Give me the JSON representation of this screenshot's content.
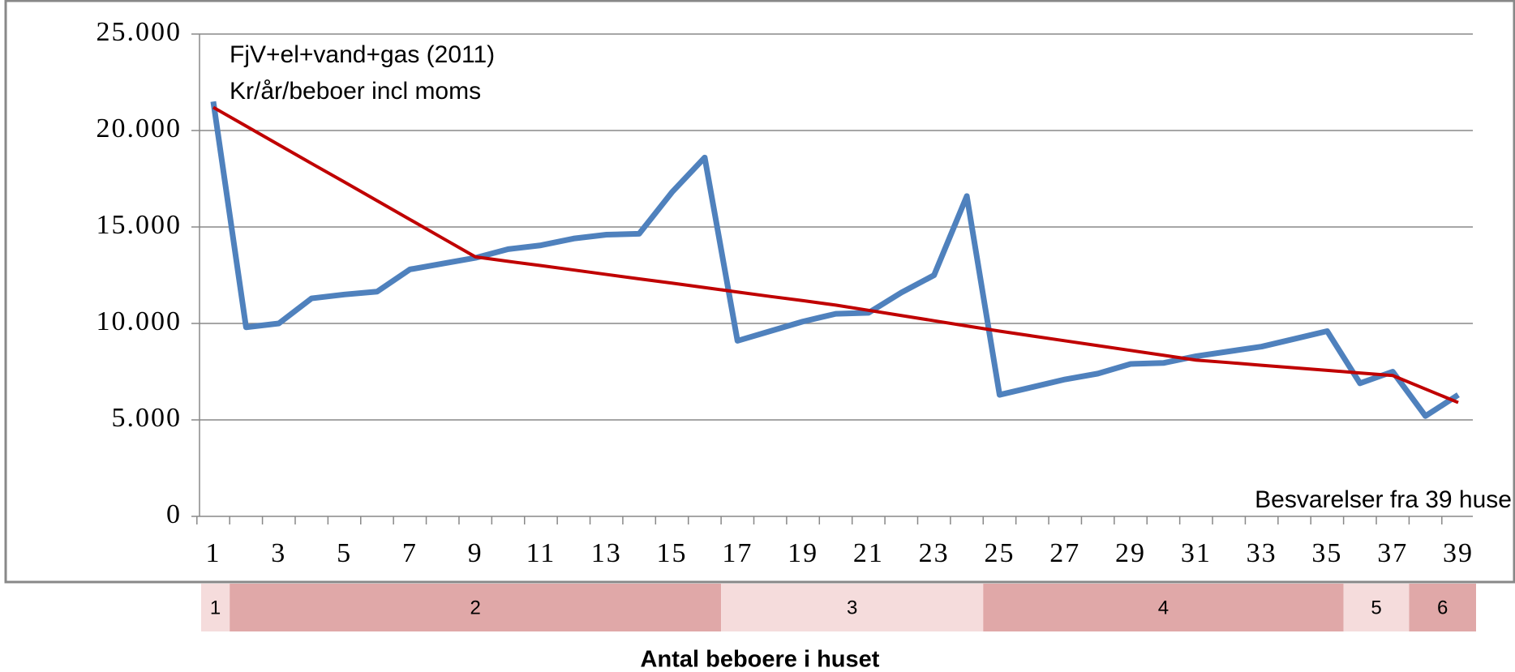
{
  "chart_data": {
    "type": "line",
    "annotations": [
      "FjV+el+vand+gas (2011)",
      "Kr/år/beboer incl moms",
      "Besvarelser fra 39 huse"
    ],
    "x_label": "Antal beboere i huset",
    "groups": [
      "1",
      "2",
      "3",
      "4",
      "5",
      "6"
    ],
    "categories": [
      1,
      null,
      3,
      null,
      5,
      null,
      7,
      null,
      9,
      null,
      11,
      null,
      13,
      null,
      15,
      null,
      17,
      null,
      19,
      null,
      21,
      null,
      23,
      null,
      25,
      null,
      27,
      null,
      29,
      null,
      31,
      null,
      33,
      null,
      35,
      null,
      37,
      null,
      39
    ],
    "series": [
      {
        "color": "#4f81bd",
        "values": [
          21500,
          9800,
          10000,
          11300,
          11500,
          11650,
          12800,
          13100,
          13400,
          13850,
          14050,
          14400,
          14600,
          14650,
          16800,
          18600,
          9100,
          9600,
          10100,
          10500,
          10550,
          11600,
          12500,
          16600,
          6300,
          6700,
          7100,
          7400,
          7900,
          7950,
          8300,
          8550,
          8800,
          9200,
          9600,
          6900,
          7500,
          5200,
          6300
        ]
      },
      {
        "color": "#c00000",
        "values": [
          21200,
          20230,
          19260,
          18290,
          17330,
          16360,
          15390,
          14420,
          13450,
          13220,
          13000,
          12770,
          12540,
          12310,
          12090,
          11860,
          11630,
          11400,
          11180,
          10950,
          10680,
          10410,
          10140,
          9870,
          9600,
          9350,
          9100,
          8850,
          8600,
          8350,
          8100,
          7970,
          7830,
          7700,
          7570,
          7430,
          7300,
          6600,
          5900
        ]
      }
    ],
    "ylim": [
      0,
      25000
    ],
    "yticks": [
      0,
      {
        "value": 5000,
        "label": "5.000"
      },
      {
        "value": 10000,
        "label": "10.000"
      },
      {
        "value": 15000,
        "label": "15.000"
      },
      {
        "value": 20000,
        "label": "20.000"
      },
      {
        "value": 25000,
        "label": "25.000"
      }
    ],
    "grid": true
  }
}
